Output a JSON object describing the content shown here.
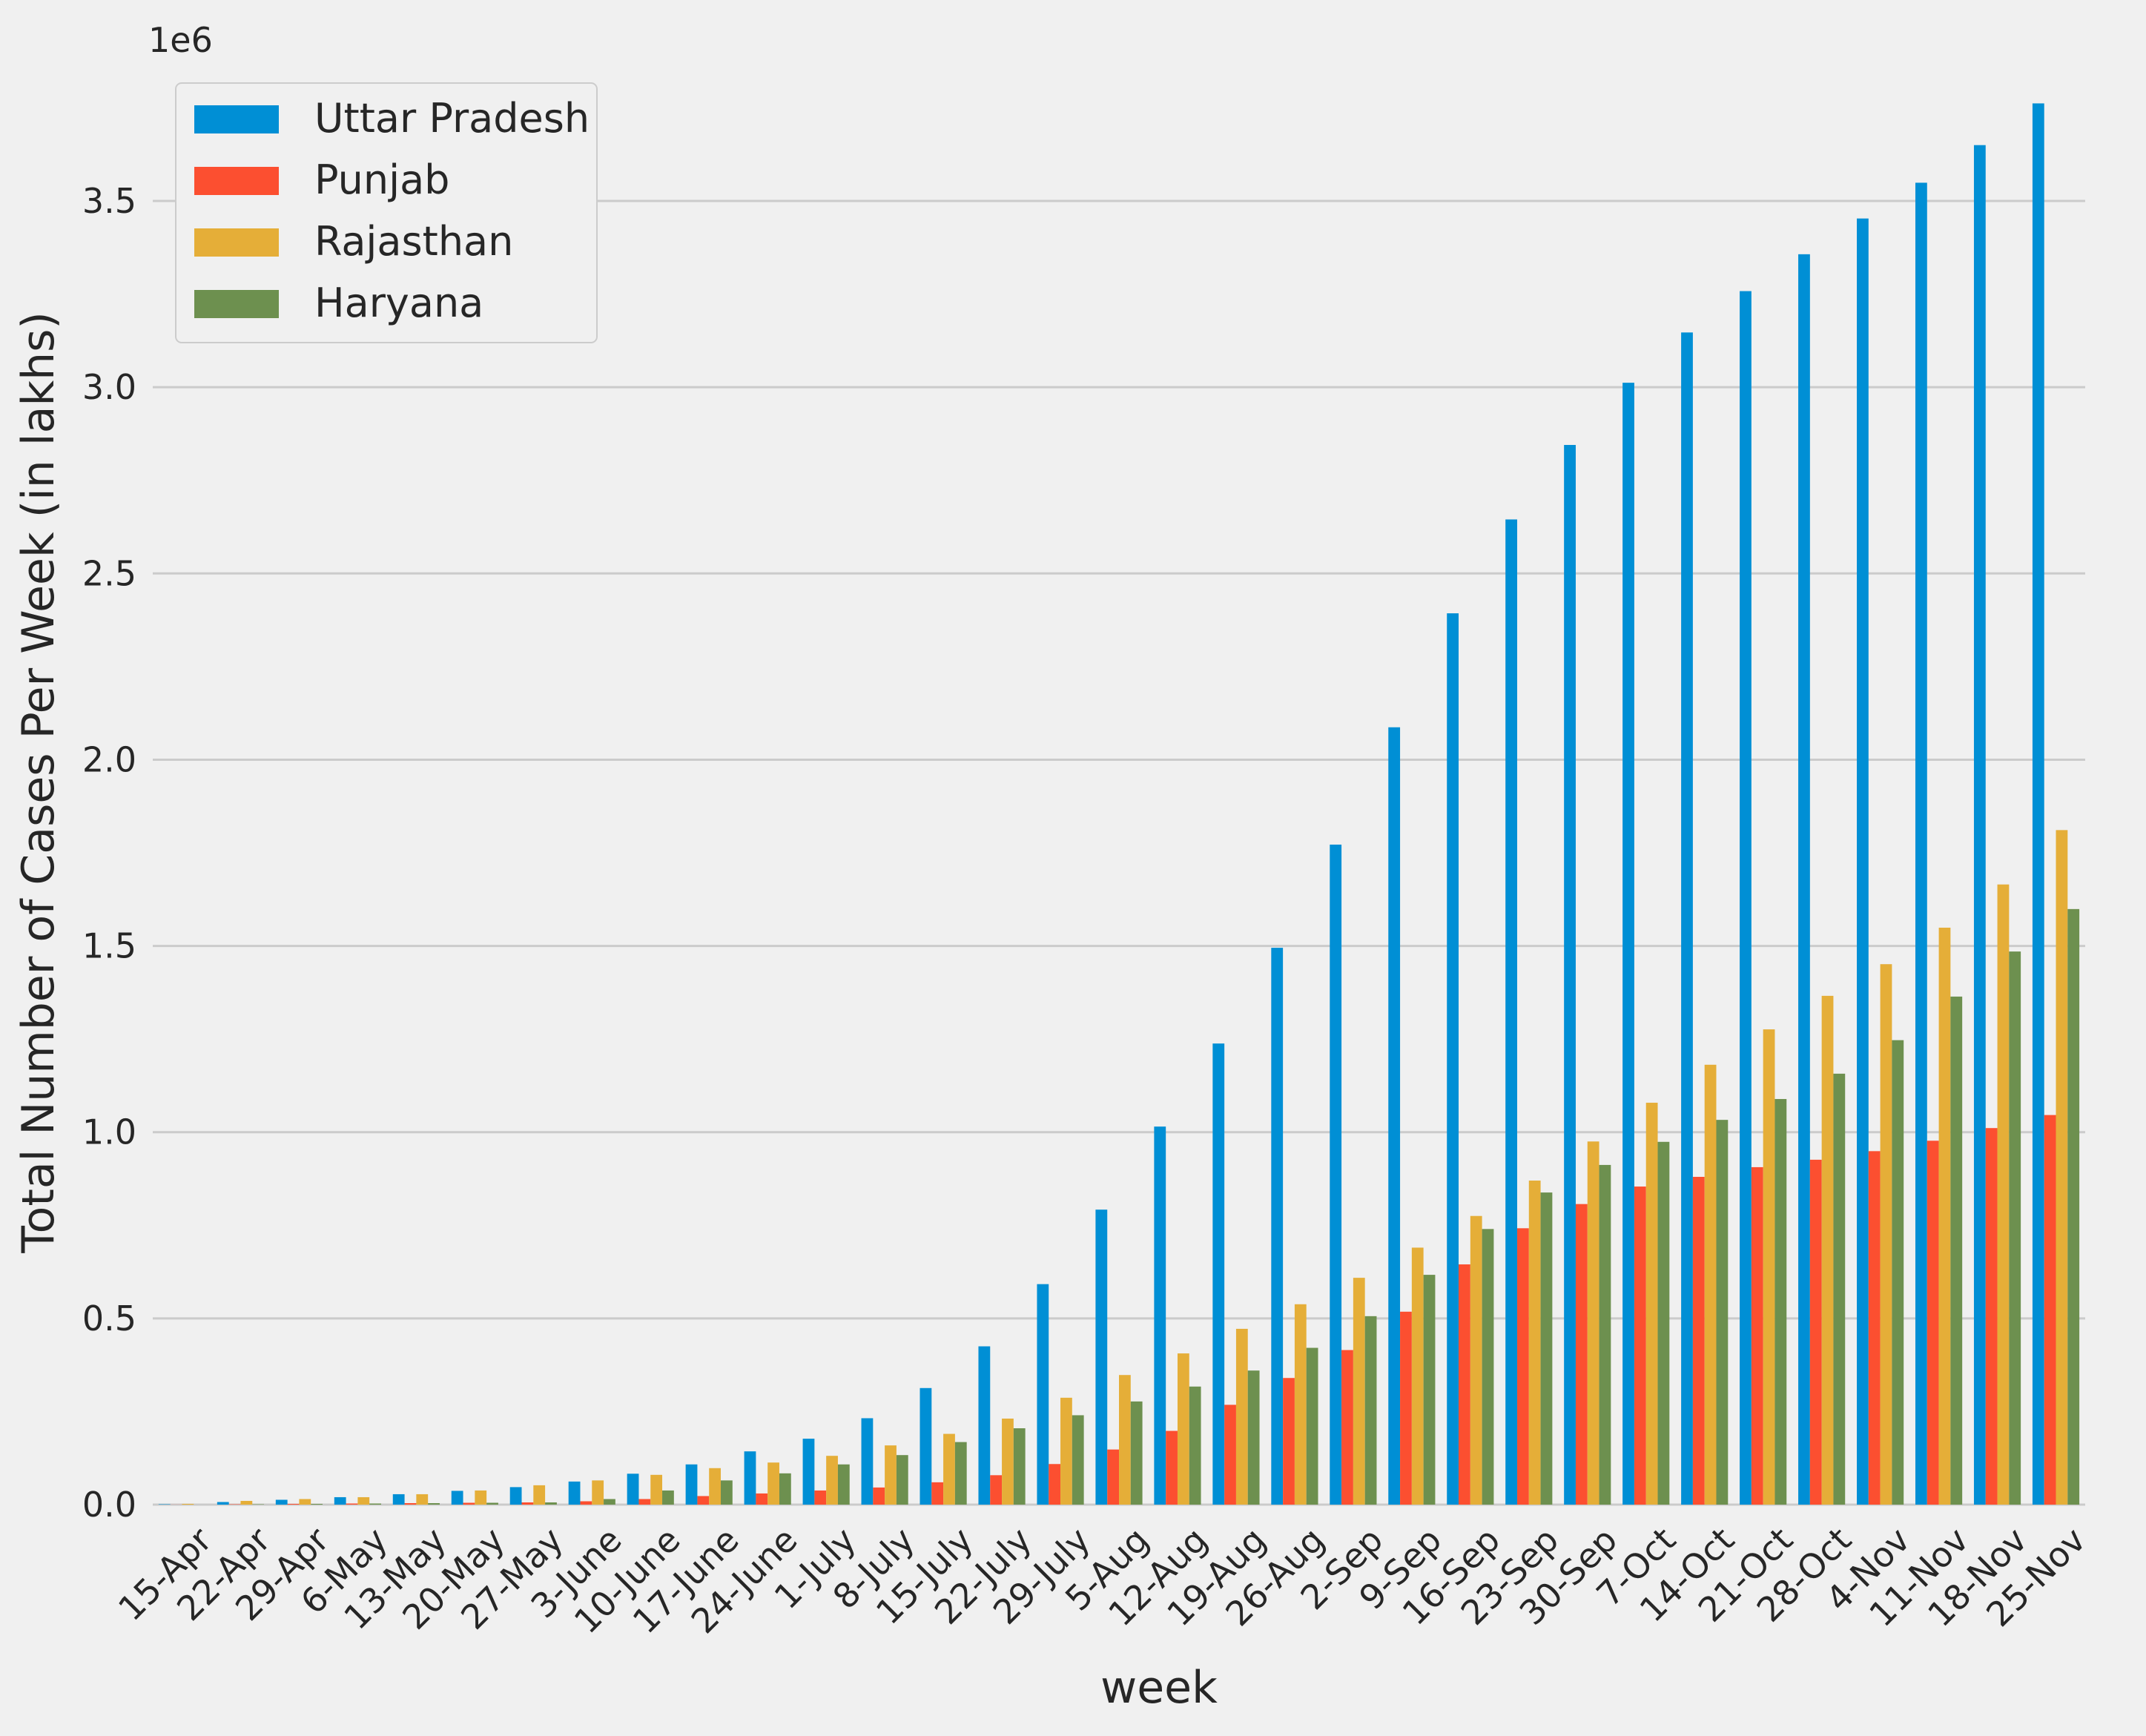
{
  "chart_data": {
    "type": "bar",
    "categories": [
      "15-Apr",
      "22-Apr",
      "29-Apr",
      "6-May",
      "13-May",
      "20-May",
      "27-May",
      "3-June",
      "10-June",
      "17-June",
      "24-June",
      "1-July",
      "8-July",
      "15-July",
      "22-July",
      "29-July",
      "5-Aug",
      "12-Aug",
      "19-Aug",
      "26-Aug",
      "2-Sep",
      "9-Sep",
      "16-Sep",
      "23-Sep",
      "30-Sep",
      "7-Oct",
      "14-Oct",
      "21-Oct",
      "28-Oct",
      "4-Nov",
      "11-Nov",
      "18-Nov",
      "25-Nov"
    ],
    "series": [
      {
        "name": "Uttar Pradesh",
        "color": "#008fd5",
        "values": [
          1000,
          7000,
          13000,
          20000,
          28000,
          37000,
          47000,
          62000,
          83000,
          108000,
          143000,
          177000,
          232000,
          313000,
          425000,
          592000,
          792000,
          1015000,
          1238000,
          1495000,
          1772000,
          2087000,
          2393000,
          2645000,
          2845000,
          3012000,
          3147000,
          3258000,
          3357000,
          3453000,
          3549000,
          3650000,
          3762000
        ]
      },
      {
        "name": "Punjab",
        "color": "#fc4f30",
        "values": [
          200,
          1000,
          2000,
          3000,
          4000,
          5000,
          6000,
          9000,
          15000,
          23000,
          30000,
          38000,
          46000,
          60000,
          79000,
          109000,
          148000,
          198000,
          268000,
          340000,
          415000,
          518000,
          645000,
          742000,
          807000,
          854000,
          880000,
          906000,
          926000,
          949000,
          977000,
          1011000,
          1046000
        ]
      },
      {
        "name": "Rajasthan",
        "color": "#e5ae38",
        "values": [
          2000,
          10000,
          15000,
          20000,
          28000,
          38000,
          52000,
          65000,
          80000,
          98000,
          113000,
          131000,
          159000,
          190000,
          231000,
          287000,
          348000,
          406000,
          472000,
          538000,
          609000,
          690000,
          775000,
          870000,
          975000,
          1079000,
          1181000,
          1276000,
          1366000,
          1451000,
          1549000,
          1665000,
          1811000
        ]
      },
      {
        "name": "Haryana",
        "color": "#6d904f",
        "values": [
          0,
          1000,
          2000,
          3000,
          4000,
          5000,
          6000,
          15000,
          38000,
          65000,
          84000,
          108000,
          133000,
          168000,
          205000,
          240000,
          277000,
          317000,
          360000,
          421000,
          506000,
          617000,
          740000,
          838000,
          912000,
          974000,
          1033000,
          1089000,
          1157000,
          1247000,
          1364000,
          1485000,
          1599000
        ]
      }
    ],
    "title": "",
    "xlabel": "week",
    "ylabel": "Total Number of Cases Per Week (in lakhs)",
    "offset_text": "1e6",
    "yticks": [
      0,
      500000,
      1000000,
      1500000,
      2000000,
      2500000,
      3000000,
      3500000
    ],
    "ytick_labels": [
      "0.0",
      "0.5",
      "1.0",
      "1.5",
      "2.0",
      "2.5",
      "3.0",
      "3.5"
    ],
    "ylim": [
      0,
      3950000
    ],
    "grid": "horizontal",
    "legend_position": "top-left",
    "style": "fivethirtyeight"
  }
}
